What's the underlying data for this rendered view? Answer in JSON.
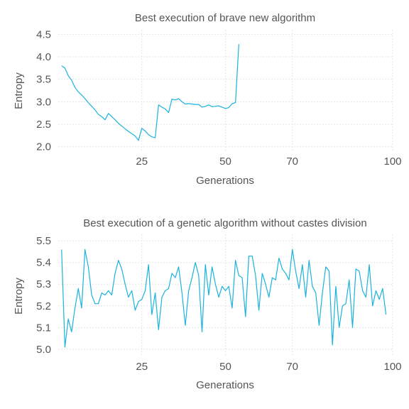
{
  "chart_data": [
    {
      "type": "line",
      "title": "Best execution of brave new algorithm",
      "xlabel": "Generations",
      "ylabel": "Entropy",
      "xlim": [
        0,
        100
      ],
      "ylim": [
        1.9,
        4.6
      ],
      "xticks": [
        25,
        50,
        70,
        100
      ],
      "yticks": [
        "2.0",
        "2.5",
        "3.0",
        "3.5",
        "4.0",
        "4.5"
      ],
      "grid": true,
      "color": "#1ab3dd",
      "x": [
        1,
        2,
        3,
        4,
        5,
        6,
        7,
        8,
        9,
        10,
        11,
        12,
        13,
        14,
        15,
        16,
        17,
        18,
        19,
        20,
        21,
        22,
        23,
        24,
        25,
        26,
        27,
        28,
        29,
        30,
        31,
        32,
        33,
        34,
        35,
        36,
        37,
        38,
        39,
        40,
        41,
        42,
        43,
        44,
        45,
        46,
        47,
        48,
        49,
        50,
        51,
        52,
        53,
        54
      ],
      "values": [
        3.8,
        3.75,
        3.58,
        3.48,
        3.32,
        3.22,
        3.15,
        3.07,
        2.98,
        2.9,
        2.82,
        2.72,
        2.67,
        2.6,
        2.74,
        2.67,
        2.6,
        2.52,
        2.46,
        2.4,
        2.34,
        2.29,
        2.24,
        2.14,
        2.41,
        2.35,
        2.27,
        2.22,
        2.2,
        2.93,
        2.88,
        2.84,
        2.76,
        3.06,
        3.04,
        3.07,
        3.0,
        2.95,
        2.96,
        2.95,
        2.94,
        2.94,
        2.88,
        2.9,
        2.93,
        2.89,
        2.9,
        2.91,
        2.88,
        2.85,
        2.87,
        2.96,
        2.98,
        4.28
      ]
    },
    {
      "type": "line",
      "title": "Best execution of a genetic algorithm without castes division",
      "xlabel": "Generations",
      "ylabel": "Entropy",
      "xlim": [
        0,
        100
      ],
      "ylim": [
        4.97,
        5.53
      ],
      "xticks": [
        25,
        50,
        70,
        100
      ],
      "yticks": [
        "5.0",
        "5.1",
        "5.2",
        "5.3",
        "5.4",
        "5.5"
      ],
      "grid": true,
      "color": "#1ab3dd",
      "x": [
        1,
        2,
        3,
        4,
        5,
        6,
        7,
        8,
        9,
        10,
        11,
        12,
        13,
        14,
        15,
        16,
        17,
        18,
        19,
        20,
        21,
        22,
        23,
        24,
        25,
        26,
        27,
        28,
        29,
        30,
        31,
        32,
        33,
        34,
        35,
        36,
        37,
        38,
        39,
        40,
        41,
        42,
        43,
        44,
        45,
        46,
        47,
        48,
        49,
        50,
        51,
        52,
        53,
        54,
        55,
        56,
        57,
        58,
        59,
        60,
        61,
        62,
        63,
        64,
        65,
        66,
        67,
        68,
        69,
        70,
        71,
        72,
        73,
        74,
        75,
        76,
        77,
        78,
        79,
        80,
        81,
        82,
        83,
        84,
        85,
        86,
        87,
        88,
        89,
        90,
        91,
        92,
        93,
        94,
        95,
        96,
        97,
        98
      ],
      "values": [
        5.46,
        5.01,
        5.14,
        5.08,
        5.19,
        5.28,
        5.19,
        5.46,
        5.38,
        5.25,
        5.21,
        5.21,
        5.26,
        5.25,
        5.27,
        5.25,
        5.35,
        5.41,
        5.37,
        5.3,
        5.24,
        5.27,
        5.18,
        5.22,
        5.23,
        5.27,
        5.39,
        5.16,
        5.26,
        5.09,
        5.24,
        5.27,
        5.28,
        5.35,
        5.33,
        5.38,
        5.26,
        5.11,
        5.27,
        5.33,
        5.4,
        5.34,
        5.08,
        5.39,
        5.25,
        5.38,
        5.3,
        5.24,
        5.29,
        5.27,
        5.29,
        5.19,
        5.41,
        5.34,
        5.33,
        5.15,
        5.43,
        5.43,
        5.34,
        5.18,
        5.35,
        5.3,
        5.24,
        5.33,
        5.32,
        5.42,
        5.37,
        5.35,
        5.32,
        5.46,
        5.36,
        5.28,
        5.39,
        5.24,
        5.41,
        5.29,
        5.26,
        5.11,
        5.26,
        5.38,
        5.36,
        5.02,
        5.29,
        5.1,
        5.2,
        5.21,
        5.32,
        5.1,
        5.37,
        5.36,
        5.27,
        5.24,
        5.39,
        5.2,
        5.27,
        5.23,
        5.28,
        5.16
      ]
    }
  ]
}
